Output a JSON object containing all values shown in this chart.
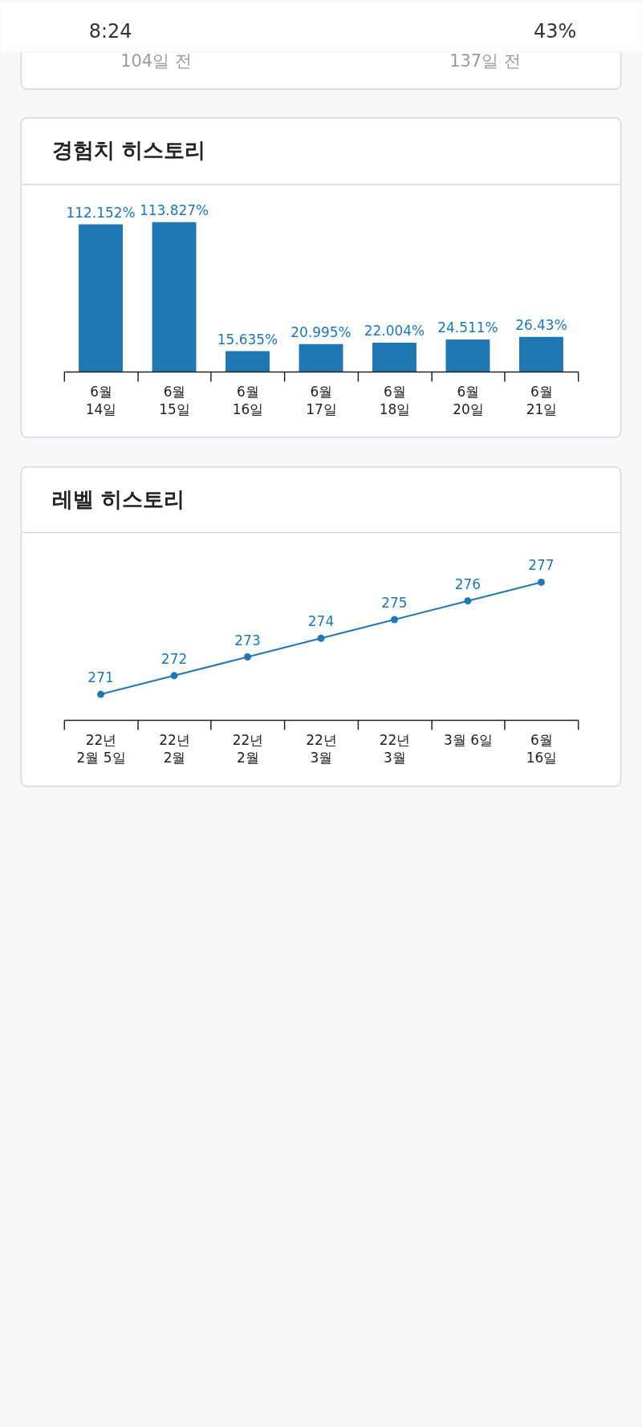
{
  "chart_data": [
    {
      "type": "other",
      "annotations": [
        "8:24",
        "43%"
      ]
    },
    {
      "type": "other",
      "annotations": [
        "104일 전",
        "137일 전"
      ]
    },
    {
      "type": "bar",
      "title": "경험치 히스토리",
      "categories": [
        "6월 14일",
        "6월 15일",
        "6월 16일",
        "6월 17일",
        "6월 18일",
        "6월 20일",
        "6월 21일"
      ],
      "values": [
        112.152,
        113.827,
        15.635,
        20.995,
        22.004,
        24.511,
        26.43
      ],
      "value_labels": [
        "112.152%",
        "113.827%",
        "15.635%",
        "20.995%",
        "22.004%",
        "24.511%",
        "26.43%"
      ],
      "color": "#1f77b4"
    },
    {
      "type": "line",
      "title": "레벨 히스토리",
      "categories": [
        "22년 2월 5일",
        "22년 2월",
        "22년 2월",
        "22년 3월",
        "22년 3월",
        "3월 6일",
        "6월 16일"
      ],
      "values": [
        271,
        272,
        273,
        274,
        275,
        276,
        277
      ],
      "data_labels": true,
      "color": "#1f77b4",
      "marker": "circle",
      "line_style": "solid"
    }
  ]
}
